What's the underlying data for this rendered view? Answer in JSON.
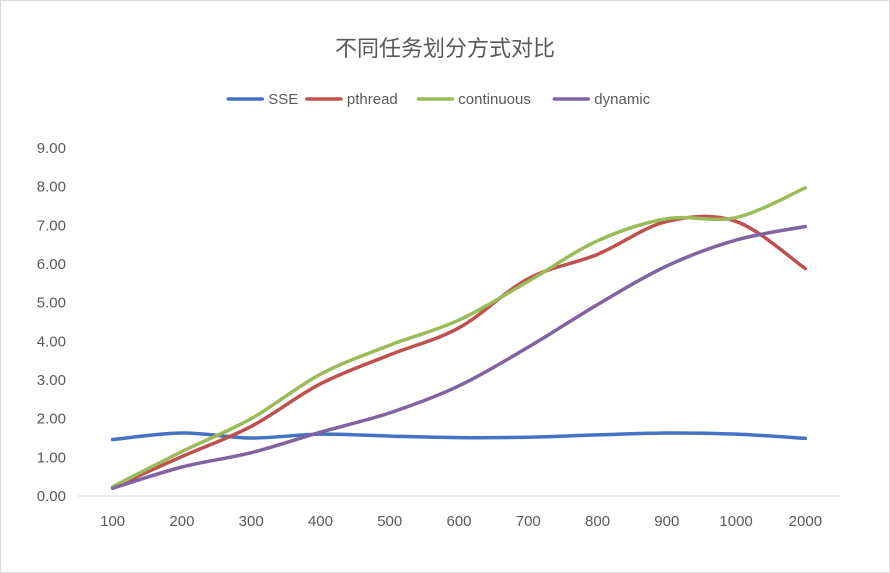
{
  "chart_data": {
    "type": "line",
    "title": "不同任务划分方式对比",
    "xlabel": "",
    "ylabel": "",
    "categories": [
      "100",
      "200",
      "300",
      "400",
      "500",
      "600",
      "700",
      "800",
      "900",
      "1000",
      "2000"
    ],
    "ylim": [
      0,
      9
    ],
    "yticks": [
      "0.00",
      "1.00",
      "2.00",
      "3.00",
      "4.00",
      "5.00",
      "6.00",
      "7.00",
      "8.00",
      "9.00"
    ],
    "grid": false,
    "legend_position": "top",
    "smooth": true,
    "series": [
      {
        "name": "SSE",
        "color": "#4472c4",
        "values": [
          1.46,
          1.63,
          1.5,
          1.6,
          1.55,
          1.51,
          1.52,
          1.58,
          1.63,
          1.6,
          1.49
        ]
      },
      {
        "name": "pthread",
        "color": "#c0504d",
        "values": [
          0.22,
          1.02,
          1.8,
          2.9,
          3.65,
          4.35,
          5.62,
          6.25,
          7.1,
          7.1,
          5.88
        ]
      },
      {
        "name": "continuous",
        "color": "#9bbb59",
        "values": [
          0.24,
          1.15,
          2.0,
          3.15,
          3.9,
          4.55,
          5.55,
          6.6,
          7.17,
          7.2,
          7.97
        ]
      },
      {
        "name": "dynamic",
        "color": "#8064a2",
        "values": [
          0.2,
          0.75,
          1.12,
          1.65,
          2.15,
          2.85,
          3.85,
          4.95,
          5.95,
          6.62,
          6.97
        ]
      }
    ]
  }
}
